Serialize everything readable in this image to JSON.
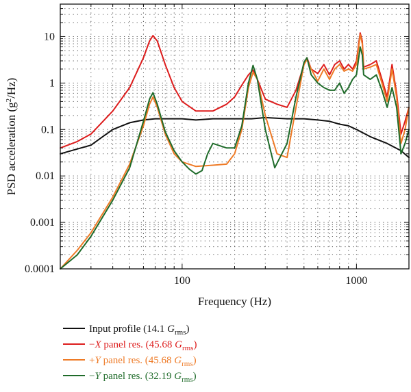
{
  "chart_data": {
    "type": "line",
    "xscale": "log",
    "yscale": "log",
    "xlim": [
      20,
      2000
    ],
    "ylim": [
      0.0001,
      50
    ],
    "xlabel": "Frequency (Hz)",
    "ylabel_parts": {
      "pre": "PSD acceleration (g",
      "sup": "2",
      "post": "/Hz)"
    },
    "x_ticks": [
      {
        "value": 100,
        "label": "100"
      },
      {
        "value": 1000,
        "label": "1000"
      }
    ],
    "y_ticks": [
      {
        "value": 0.0001,
        "label": "0.0001"
      },
      {
        "value": 0.001,
        "label": "0.001"
      },
      {
        "value": 0.01,
        "label": "0.01"
      },
      {
        "value": 0.1,
        "label": "0.1"
      },
      {
        "value": 1,
        "label": "1"
      },
      {
        "value": 10,
        "label": "10"
      }
    ],
    "grid": "dotted-minor",
    "legend_position": "bottom",
    "series": [
      {
        "color": "#111111",
        "legend": {
          "pre": "Input profile (14.1 ",
          "var": "G",
          "sub": "rms",
          "post": ")"
        },
        "x": [
          20,
          25,
          30,
          35,
          40,
          50,
          60,
          70,
          80,
          100,
          120,
          150,
          200,
          250,
          300,
          400,
          500,
          600,
          700,
          800,
          900,
          1000,
          1200,
          1500,
          1800,
          2000
        ],
        "y": [
          0.03,
          0.038,
          0.046,
          0.07,
          0.1,
          0.14,
          0.16,
          0.17,
          0.17,
          0.17,
          0.16,
          0.17,
          0.17,
          0.17,
          0.18,
          0.17,
          0.17,
          0.16,
          0.15,
          0.13,
          0.12,
          0.1,
          0.07,
          0.05,
          0.035,
          0.025
        ]
      },
      {
        "color": "#dd1c1c",
        "legend": {
          "pre": "−",
          "var1": "X",
          "mid": " panel res. (45.68 ",
          "var": "G",
          "sub": "rms",
          "post": ")"
        },
        "x": [
          20,
          25,
          30,
          40,
          50,
          60,
          65,
          68,
          72,
          80,
          90,
          100,
          120,
          150,
          180,
          200,
          220,
          240,
          255,
          270,
          300,
          350,
          400,
          450,
          500,
          520,
          550,
          600,
          650,
          700,
          750,
          800,
          850,
          900,
          950,
          1000,
          1050,
          1080,
          1100,
          1200,
          1300,
          1400,
          1500,
          1600,
          1700,
          1800,
          1900,
          2000
        ],
        "y": [
          0.04,
          0.055,
          0.08,
          0.25,
          0.8,
          3.5,
          8,
          10.5,
          8,
          2.5,
          0.8,
          0.4,
          0.25,
          0.25,
          0.35,
          0.5,
          0.9,
          1.5,
          1.9,
          1.2,
          0.45,
          0.35,
          0.3,
          0.7,
          2.5,
          3.5,
          2,
          1.6,
          2.5,
          1.5,
          2.5,
          3,
          2,
          2.5,
          2,
          3,
          12,
          8,
          2.2,
          2.5,
          3,
          1.2,
          0.5,
          2.5,
          0.6,
          0.08,
          0.15,
          0.3
        ]
      },
      {
        "color": "#ee7a26",
        "legend": {
          "pre": "+",
          "var1": "Y",
          "mid": " panel res. (45.68 ",
          "var": "G",
          "sub": "rms",
          "post": ")"
        },
        "x": [
          20,
          25,
          30,
          40,
          50,
          60,
          65,
          68,
          72,
          80,
          90,
          100,
          120,
          150,
          180,
          200,
          220,
          240,
          255,
          270,
          300,
          350,
          400,
          450,
          500,
          520,
          550,
          600,
          650,
          700,
          750,
          800,
          850,
          900,
          950,
          1000,
          1050,
          1080,
          1100,
          1200,
          1300,
          1400,
          1500,
          1600,
          1700,
          1800,
          1900,
          2000
        ],
        "y": [
          0.0001,
          0.00025,
          0.0006,
          0.0035,
          0.018,
          0.12,
          0.35,
          0.5,
          0.3,
          0.08,
          0.03,
          0.02,
          0.016,
          0.017,
          0.018,
          0.03,
          0.1,
          0.8,
          1.7,
          1.2,
          0.2,
          0.03,
          0.025,
          0.3,
          2.5,
          3.2,
          2,
          1.1,
          2,
          1.2,
          2,
          2.5,
          1.8,
          2,
          1.8,
          2.5,
          11,
          7,
          2,
          2.2,
          2.5,
          1,
          0.4,
          2,
          0.5,
          0.05,
          0.1,
          0.3
        ]
      },
      {
        "color": "#1f6b2a",
        "legend": {
          "pre": "−",
          "var1": "Y",
          "mid": " panel res. (32.19 ",
          "var": "G",
          "sub": "rms",
          "post": ")"
        },
        "x": [
          20,
          25,
          30,
          40,
          50,
          60,
          65,
          68,
          72,
          80,
          90,
          100,
          110,
          120,
          130,
          140,
          150,
          180,
          200,
          220,
          240,
          255,
          270,
          300,
          340,
          400,
          450,
          500,
          520,
          550,
          600,
          650,
          700,
          750,
          800,
          850,
          900,
          950,
          1000,
          1050,
          1080,
          1100,
          1200,
          1300,
          1400,
          1500,
          1600,
          1700,
          1800,
          1900,
          2000
        ],
        "y": [
          9e-05,
          0.0002,
          0.0005,
          0.003,
          0.015,
          0.15,
          0.45,
          0.62,
          0.35,
          0.09,
          0.035,
          0.02,
          0.014,
          0.011,
          0.013,
          0.03,
          0.05,
          0.04,
          0.04,
          0.12,
          1.0,
          2.4,
          1.2,
          0.1,
          0.015,
          0.05,
          0.5,
          2.8,
          3.5,
          1.5,
          1.0,
          0.8,
          0.7,
          0.7,
          1.0,
          0.6,
          0.8,
          1.2,
          1.5,
          6,
          4,
          1.5,
          1.2,
          1.5,
          0.7,
          0.3,
          0.8,
          0.3,
          0.03,
          0.05,
          0.1
        ]
      }
    ]
  }
}
